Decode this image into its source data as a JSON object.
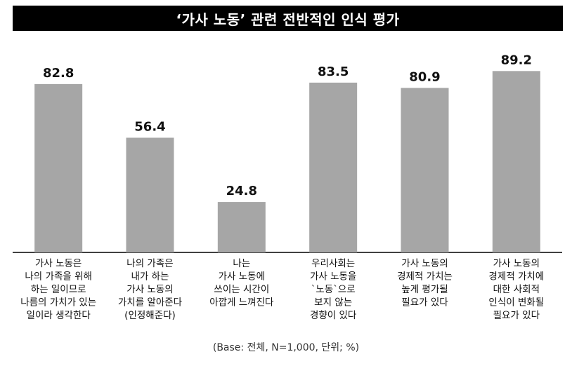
{
  "title": "‘가사 노동’ 관련 전반적인 인식 평가",
  "footnote": "(Base: 전체, N=1,000, 단위; %)",
  "colors": {
    "bar": "#a6a6a6",
    "title_bg": "#000000",
    "title_text": "#ffffff",
    "axis": "#000000"
  },
  "chart_data": {
    "type": "bar",
    "title": "‘가사 노동’ 관련 전반적인 인식 평가",
    "categories": [
      [
        "가사 노동은",
        "나의 가족을 위해",
        "하는 일이므로",
        "나름의 가치가 있는",
        "일이라 생각한다"
      ],
      [
        "나의 가족은",
        "내가 하는",
        "가사 노동의",
        "가치를 알아준다",
        "(인정해준다)"
      ],
      [
        "나는",
        "가사 노동에",
        "쓰이는 시간이",
        "아깝게 느껴진다"
      ],
      [
        "우리사회는",
        "가사 노동을",
        "`노동`으로",
        "보지 않는",
        "경향이 있다"
      ],
      [
        "가사 노동의",
        "경제적 가치는",
        "높게 평가될",
        "필요가 있다"
      ],
      [
        "가사 노동의",
        "경제적 가치에",
        "대한 사회적",
        "인식이 변화될",
        "필요가 있다"
      ]
    ],
    "values": [
      82.8,
      56.4,
      24.8,
      83.5,
      80.9,
      89.2
    ],
    "value_labels": [
      "82.8",
      "56.4",
      "24.8",
      "83.5",
      "80.9",
      "89.2"
    ],
    "ylim": [
      0,
      100
    ],
    "grid": false,
    "xlabel": "",
    "ylabel": ""
  }
}
